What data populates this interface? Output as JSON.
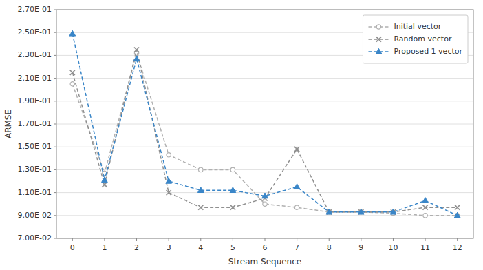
{
  "chart_data": {
    "type": "line",
    "xlabel": "Stream Sequence",
    "ylabel": "ARMSE",
    "x": [
      0,
      1,
      2,
      3,
      4,
      5,
      6,
      7,
      8,
      9,
      10,
      11,
      12
    ],
    "series": [
      {
        "name": "Initial vector",
        "color": "#b0b0b0",
        "marker": "circle",
        "line_style": "dashed",
        "values": [
          0.205,
          0.127,
          0.232,
          0.143,
          0.13,
          0.13,
          0.1,
          0.097,
          0.093,
          0.093,
          0.092,
          0.09,
          0.09
        ]
      },
      {
        "name": "Random vector",
        "color": "#909090",
        "marker": "x",
        "line_style": "dashed",
        "values": [
          0.215,
          0.117,
          0.235,
          0.11,
          0.097,
          0.097,
          0.105,
          0.148,
          0.093,
          0.093,
          0.093,
          0.097,
          0.097
        ]
      },
      {
        "name": "Proposed 1 vector",
        "color": "#3a86c8",
        "marker": "triangle",
        "line_style": "dashed",
        "values": [
          0.249,
          0.121,
          0.227,
          0.12,
          0.112,
          0.112,
          0.107,
          0.115,
          0.093,
          0.093,
          0.093,
          0.103,
          0.09
        ]
      }
    ],
    "xlim": [
      -0.5,
      12.5
    ],
    "xticks": [
      0,
      1,
      2,
      3,
      4,
      5,
      6,
      7,
      8,
      9,
      10,
      11,
      12
    ],
    "ylim": [
      0.07,
      0.27
    ],
    "yticks": [
      {
        "value": 0.07,
        "label": "7.00E-02"
      },
      {
        "value": 0.09,
        "label": "9.00E-02"
      },
      {
        "value": 0.11,
        "label": "1.10E-01"
      },
      {
        "value": 0.13,
        "label": "1.30E-01"
      },
      {
        "value": 0.15,
        "label": "1.50E-01"
      },
      {
        "value": 0.17,
        "label": "1.70E-01"
      },
      {
        "value": 0.19,
        "label": "1.90E-01"
      },
      {
        "value": 0.21,
        "label": "2.10E-01"
      },
      {
        "value": 0.23,
        "label": "2.30E-01"
      },
      {
        "value": 0.25,
        "label": "2.50E-01"
      },
      {
        "value": 0.27,
        "label": "2.70E-01"
      }
    ],
    "grid": "y",
    "legend": "upper right"
  }
}
